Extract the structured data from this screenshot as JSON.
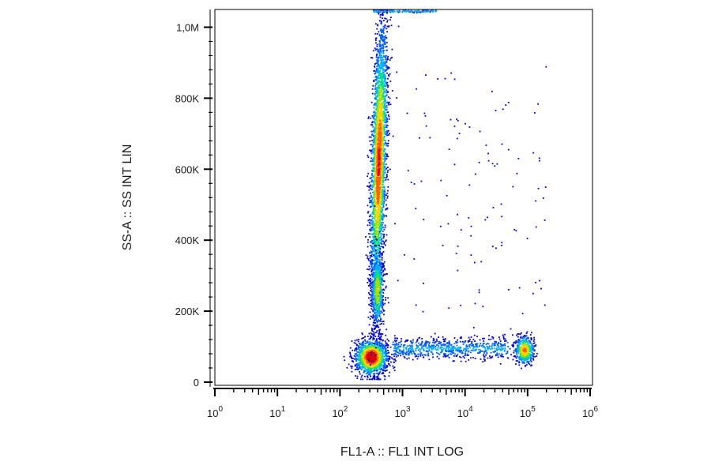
{
  "chart_data": {
    "type": "scatter",
    "subtype": "flow-cytometry density dot plot",
    "xlabel": "FL1-A :: FL1 INT LOG",
    "ylabel": "SS-A :: SS INT LIN",
    "x_scale": "log",
    "xlim": [
      1,
      1000000
    ],
    "x_ticks": [
      {
        "base": "10",
        "exp": "0",
        "value": 1
      },
      {
        "base": "10",
        "exp": "1",
        "value": 10
      },
      {
        "base": "10",
        "exp": "2",
        "value": 100
      },
      {
        "base": "10",
        "exp": "3",
        "value": 1000
      },
      {
        "base": "10",
        "exp": "4",
        "value": 10000
      },
      {
        "base": "10",
        "exp": "5",
        "value": 100000
      },
      {
        "base": "10",
        "exp": "6",
        "value": 1000000
      }
    ],
    "y_scale": "linear",
    "ylim": [
      0,
      1050000
    ],
    "y_ticks": [
      {
        "label": "0",
        "value": 0
      },
      {
        "label": "200K",
        "value": 200000
      },
      {
        "label": "400K",
        "value": 400000
      },
      {
        "label": "600K",
        "value": 600000
      },
      {
        "label": "800K",
        "value": 800000
      },
      {
        "label": "1,0M",
        "value": 1000000
      }
    ],
    "grid": false,
    "legend": "none",
    "colormap": [
      "#0000d0",
      "#0060ff",
      "#00b0ff",
      "#00e080",
      "#a0e000",
      "#ffd000",
      "#ff6000",
      "#e00000"
    ],
    "populations": [
      {
        "x_center": 320,
        "x_log_sd": 0.13,
        "y_center": 70000,
        "y_sd": 25000,
        "count": 1400,
        "peak": 1.0
      },
      {
        "x_center": 420,
        "x_log_sd": 0.06,
        "y_center": 620000,
        "y_sd": 200000,
        "count": 3200,
        "peak": 0.85,
        "x_log_shift_per_100k": 0.015
      },
      {
        "x_center": 400,
        "x_log_sd": 0.05,
        "y_center": 260000,
        "y_sd": 55000,
        "count": 600,
        "peak": 0.6
      },
      {
        "x_center": 90000,
        "x_log_sd": 0.08,
        "y_center": 90000,
        "y_sd": 20000,
        "count": 450,
        "peak": 0.75
      },
      {
        "x_min": 700,
        "x_max": 50000,
        "y_center": 95000,
        "y_sd": 15000,
        "count": 700,
        "peak": 0.25
      },
      {
        "x_min": 600,
        "x_max": 200000,
        "y_min": 100000,
        "y_max": 900000,
        "count": 120,
        "peak": 0.05
      },
      {
        "x_min": 350,
        "x_max": 3500,
        "y_center": 1045000,
        "y_sd": 1500,
        "count": 160,
        "peak": 0.3
      }
    ]
  }
}
